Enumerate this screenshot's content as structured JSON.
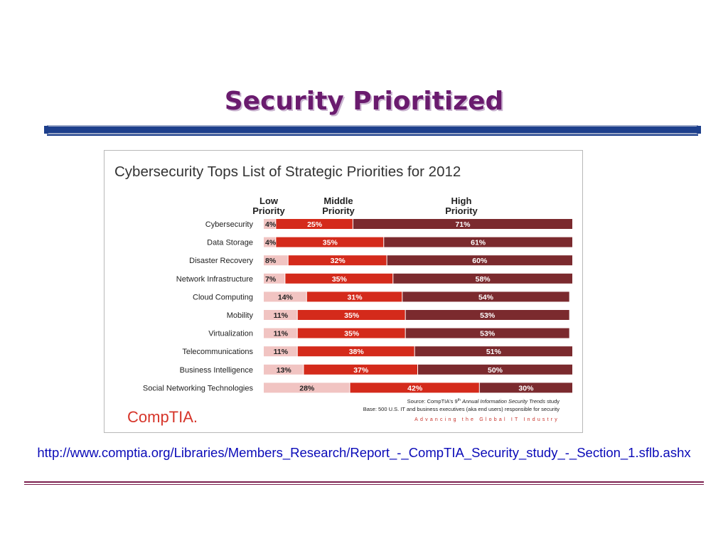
{
  "slide": {
    "title": "Security Prioritized",
    "source_url": "http://www.comptia.org/Libraries/Members_Research/Report_-_CompTIA_Security_study_-_Section_1.sflb.ashx"
  },
  "colors": {
    "low": "#f1c4c2",
    "middle": "#d42a1b",
    "high": "#7b2a2e",
    "title": "#6a1b6e",
    "link": "#0a0ab8"
  },
  "chart_data": {
    "type": "bar",
    "orientation": "horizontal-stacked-100",
    "title": "Cybersecurity Tops List of Strategic Priorities for 2012",
    "series_headers": [
      {
        "line1": "Low",
        "line2": "Priority"
      },
      {
        "line1": "Middle",
        "line2": "Priority"
      },
      {
        "line1": "High",
        "line2": "Priority"
      }
    ],
    "categories": [
      "Cybersecurity",
      "Data Storage",
      "Disaster Recovery",
      "Network Infrastructure",
      "Cloud Computing",
      "Mobility",
      "Virtualization",
      "Telecommunications",
      "Business Intelligence",
      "Social Networking Technologies"
    ],
    "series": [
      {
        "name": "Low Priority",
        "values": [
          4,
          4,
          8,
          7,
          14,
          11,
          11,
          11,
          13,
          28
        ]
      },
      {
        "name": "Middle Priority",
        "values": [
          25,
          35,
          32,
          35,
          31,
          35,
          35,
          38,
          37,
          42
        ]
      },
      {
        "name": "High Priority",
        "values": [
          71,
          61,
          60,
          58,
          54,
          53,
          53,
          51,
          50,
          30
        ]
      }
    ],
    "value_suffix": "%",
    "source_prefix": "Source: CompTIA's 9",
    "source_sup": "th",
    "source_study": "Annual Information Security Trends",
    "source_suffix": "study",
    "base_note": "Base: 500 U.S. IT and business executives (aka end users) responsible for security",
    "tagline": "Advancing the Global IT Industry",
    "logo": "CompTIA."
  }
}
